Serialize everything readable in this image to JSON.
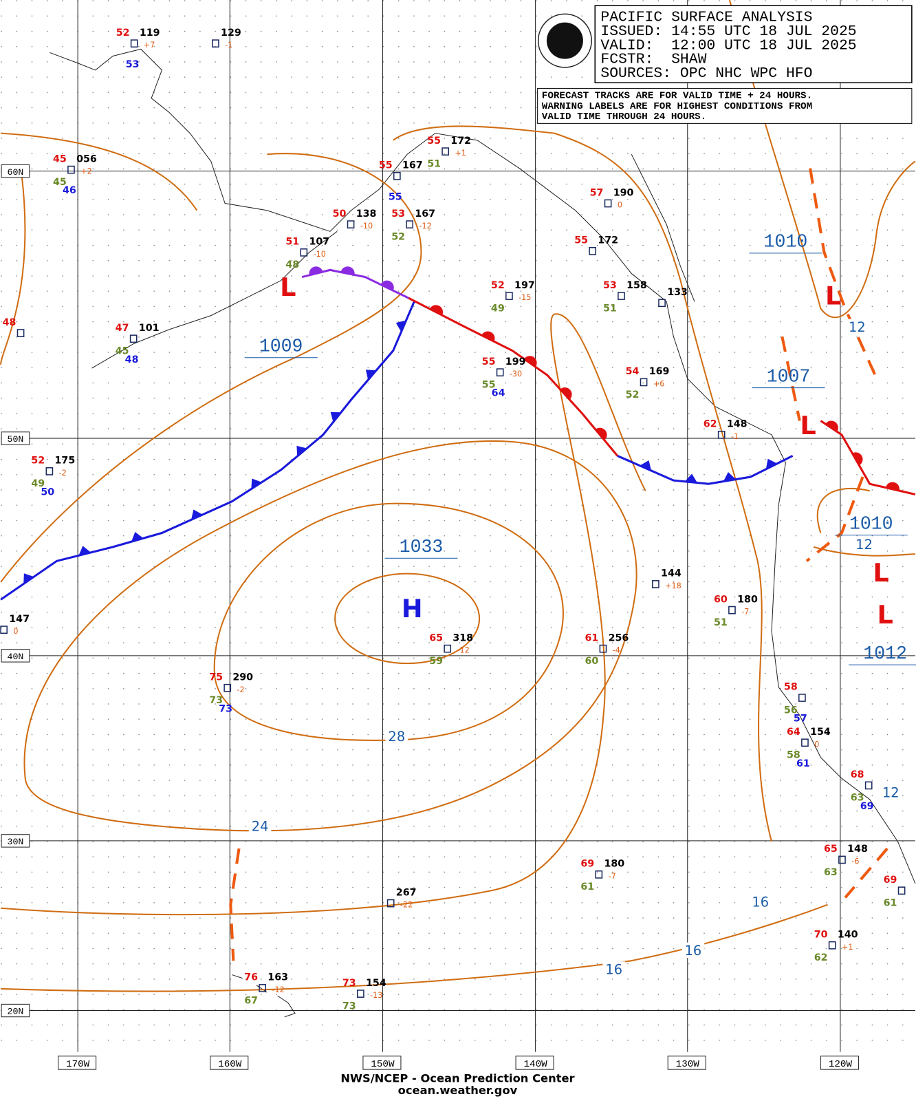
{
  "header": {
    "title": "PACIFIC SURFACE ANALYSIS",
    "issued": "ISSUED: 14:55 UTC 18 JUL 2025",
    "valid": "VALID:  12:00 UTC 18 JUL 2025",
    "fcstr": "FCSTR:  SHAW",
    "sources": "SOURCES: OPC NHC WPC HFO"
  },
  "notice": [
    "FORECAST TRACKS ARE FOR VALID TIME + 24 HOURS.",
    "WARNING LABELS ARE FOR HIGHEST CONDITIONS FROM",
    "VALID TIME THROUGH 24 HOURS."
  ],
  "latitudes": [
    "60N",
    "50N",
    "40N",
    "30N",
    "20N"
  ],
  "longitudes": [
    "170W",
    "160W",
    "150W",
    "140W",
    "130W",
    "120W"
  ],
  "centers": [
    {
      "symbol": "L",
      "pressure": 1009
    },
    {
      "symbol": "L",
      "pressure": 1010
    },
    {
      "symbol": "L",
      "pressure": 1007
    },
    {
      "symbol": "H",
      "pressure": 1033
    },
    {
      "symbol": "L",
      "pressure": 1010
    },
    {
      "symbol": "L",
      "pressure": 1012
    }
  ],
  "isobar_labels": [
    28,
    24,
    16,
    16,
    16,
    12,
    12,
    12
  ],
  "stations": [
    {
      "t": 52,
      "p": "119",
      "tend": "+7",
      "sst": 53
    },
    {
      "p": "129",
      "tend": "-1"
    },
    {
      "t": 45,
      "p": "056",
      "tend": "+2",
      "dew": 45,
      "sst": 46
    },
    {
      "t": 55,
      "p": "172",
      "tend": "+1",
      "dew": 51
    },
    {
      "t": 55,
      "p": "167",
      "sst": 55
    },
    {
      "t": 50,
      "p": "138",
      "tend": "-10"
    },
    {
      "t": 53,
      "p": "167",
      "tend": "-12",
      "dew": 52
    },
    {
      "t": 51,
      "p": "107",
      "tend": "-10",
      "dew": 48
    },
    {
      "t": 57,
      "p": "190",
      "tend": "0"
    },
    {
      "t": 55,
      "p": "172"
    },
    {
      "t": 52,
      "p": "197",
      "tend": "-15",
      "dew": 49
    },
    {
      "t": 53,
      "p": "158",
      "dew": 51
    },
    {
      "p": "133"
    },
    {
      "t": 47,
      "p": "101",
      "dew": 45,
      "sst": 48
    },
    {
      "t": 55,
      "p": "199",
      "tend": "-30",
      "dew": 55,
      "sst": 64
    },
    {
      "t": 54,
      "p": "169",
      "tend": "+6",
      "dew": 52
    },
    {
      "t": 48
    },
    {
      "t": 62,
      "p": "148",
      "tend": "-1"
    },
    {
      "t": 52,
      "p": "175",
      "tend": "-2",
      "dew": 49,
      "sst": 50
    },
    {
      "p": "147",
      "tend": "0"
    },
    {
      "p": "144",
      "tend": "+18"
    },
    {
      "t": 60,
      "p": "180",
      "tend": "-7",
      "dew": 51
    },
    {
      "t": 65,
      "p": "318",
      "tend": "-12",
      "dew": 59
    },
    {
      "t": 61,
      "p": "256",
      "tend": "-4",
      "dew": 60
    },
    {
      "t": 75,
      "p": "290",
      "tend": "-2",
      "dew": 73,
      "sst": 73
    },
    {
      "t": 58,
      "dew": 56,
      "sst": 57
    },
    {
      "t": 64,
      "p": "154",
      "tend": "0",
      "dew": 58,
      "sst": 61
    },
    {
      "t": 68,
      "dew": 63,
      "sst": 69
    },
    {
      "t": 65,
      "p": "148",
      "tend": "-6",
      "dew": 63
    },
    {
      "t": 69,
      "p": "180",
      "tend": "-7",
      "dew": 61
    },
    {
      "p": "267",
      "tend": "-22"
    },
    {
      "t": 69,
      "dew": 61
    },
    {
      "t": 70,
      "p": "140",
      "tend": "+1",
      "dew": 62
    },
    {
      "t": 76,
      "p": "163",
      "tend": "-12",
      "dew": 67
    },
    {
      "t": 73,
      "p": "154",
      "tend": "-13",
      "dew": 73
    }
  ],
  "footer": [
    "NWS/NCEP - Ocean Prediction Center",
    "ocean.weather.gov"
  ]
}
